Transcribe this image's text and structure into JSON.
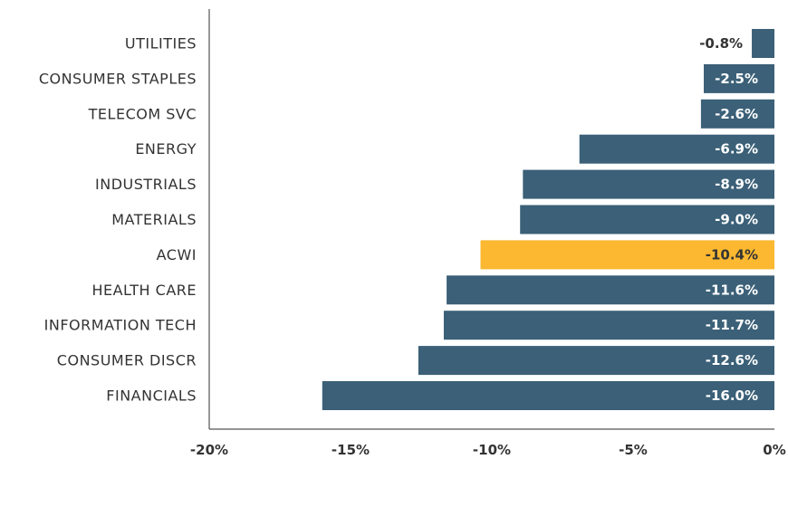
{
  "chart_data": {
    "type": "bar",
    "orientation": "horizontal",
    "categories": [
      "UTILITIES",
      "CONSUMER STAPLES",
      "TELECOM SVC",
      "ENERGY",
      "INDUSTRIALS",
      "MATERIALS",
      "ACWI",
      "HEALTH CARE",
      "INFORMATION TECH",
      "CONSUMER DISCR",
      "FINANCIALS"
    ],
    "values": [
      -0.8,
      -2.5,
      -2.6,
      -6.9,
      -8.9,
      -9.0,
      -10.4,
      -11.6,
      -11.7,
      -12.6,
      -16.0
    ],
    "data_labels": [
      "-0.8%",
      "-2.5%",
      "-2.6%",
      "-6.9%",
      "-8.9%",
      "-9.0%",
      "-10.4%",
      "-11.6%",
      "-11.7%",
      "-12.6%",
      "-16.0%"
    ],
    "highlight_category": "ACWI",
    "xlim": [
      -20,
      0
    ],
    "x_ticks": [
      -20,
      -15,
      -10,
      -5,
      0
    ],
    "x_tick_labels": [
      "-20%",
      "-15%",
      "-10%",
      "-5%",
      "0%"
    ],
    "title": "",
    "xlabel": "",
    "ylabel": "",
    "grid": false,
    "legend": "none",
    "colors": {
      "bar": "#3b6078",
      "highlight": "#fbb830",
      "axis": "#555555",
      "label_inside": "#ffffff",
      "label_outside": "#333333"
    }
  }
}
